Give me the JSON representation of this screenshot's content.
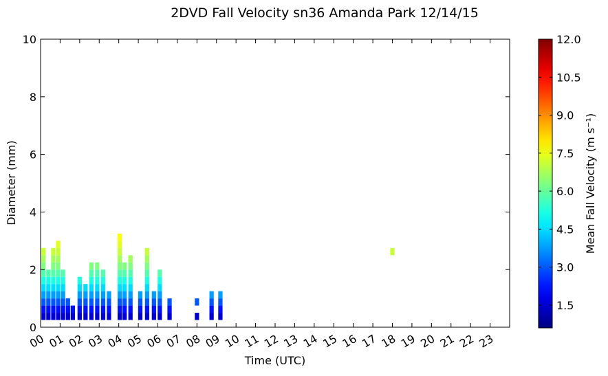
{
  "chart_data": {
    "type": "heatmap",
    "title": "2DVD Fall Velocity sn36 Amanda Park 12/14/15",
    "x_label": "Time (UTC)",
    "y_label": "Diameter (mm)",
    "colorbar_label": "Mean Fall Velocity (m s⁻¹)",
    "colormap": "jet",
    "xlim": [
      0,
      24
    ],
    "ylim": [
      0,
      10
    ],
    "clim": [
      0.6,
      12
    ],
    "xticks": [
      {
        "value": 0,
        "label": "00"
      },
      {
        "value": 1,
        "label": "01"
      },
      {
        "value": 2,
        "label": "02"
      },
      {
        "value": 3,
        "label": "03"
      },
      {
        "value": 4,
        "label": "04"
      },
      {
        "value": 5,
        "label": "05"
      },
      {
        "value": 6,
        "label": "06"
      },
      {
        "value": 7,
        "label": "07"
      },
      {
        "value": 8,
        "label": "08"
      },
      {
        "value": 9,
        "label": "09"
      },
      {
        "value": 10,
        "label": "10"
      },
      {
        "value": 11,
        "label": "11"
      },
      {
        "value": 12,
        "label": "12"
      },
      {
        "value": 13,
        "label": "13"
      },
      {
        "value": 14,
        "label": "14"
      },
      {
        "value": 15,
        "label": "15"
      },
      {
        "value": 16,
        "label": "16"
      },
      {
        "value": 17,
        "label": "17"
      },
      {
        "value": 18,
        "label": "18"
      },
      {
        "value": 19,
        "label": "19"
      },
      {
        "value": 20,
        "label": "20"
      },
      {
        "value": 21,
        "label": "21"
      },
      {
        "value": 22,
        "label": "22"
      },
      {
        "value": 23,
        "label": "23"
      }
    ],
    "yticks": [
      0,
      2,
      4,
      6,
      8,
      10
    ],
    "cticks": [
      1.5,
      {
        "value": 3,
        "label": "3.0"
      },
      4.5,
      {
        "value": 6,
        "label": "6.0"
      },
      7.5,
      {
        "value": 9,
        "label": "9.0"
      },
      10.5,
      {
        "value": 12,
        "label": "12.0"
      }
    ],
    "columns": [
      {
        "x": 0.15,
        "diameters": [
          0.375,
          0.625,
          0.875,
          1.125,
          1.375,
          1.625,
          1.875,
          2.125,
          2.375,
          2.625
        ],
        "values": [
          1.5,
          2.2,
          3.0,
          3.8,
          4.5,
          5.2,
          5.8,
          6.3,
          6.7,
          7.1
        ]
      },
      {
        "x": 0.4,
        "diameters": [
          0.375,
          0.625,
          0.875,
          1.125,
          1.375,
          1.625,
          1.875
        ],
        "values": [
          1.5,
          2.2,
          3.0,
          3.8,
          4.5,
          5.2,
          5.8
        ]
      },
      {
        "x": 0.65,
        "diameters": [
          0.375,
          0.625,
          0.875,
          1.125,
          1.375,
          1.625,
          1.875,
          2.125,
          2.375,
          2.625
        ],
        "values": [
          1.5,
          2.2,
          3.0,
          3.8,
          4.5,
          5.2,
          5.8,
          6.3,
          6.7,
          7.1
        ]
      },
      {
        "x": 0.9,
        "diameters": [
          0.375,
          0.625,
          0.875,
          1.125,
          1.375,
          1.625,
          1.875,
          2.125,
          2.375,
          2.625,
          2.875
        ],
        "values": [
          1.5,
          2.2,
          3.0,
          3.8,
          4.5,
          5.2,
          5.8,
          6.3,
          6.7,
          7.1,
          7.4
        ]
      },
      {
        "x": 1.15,
        "diameters": [
          0.375,
          0.625,
          0.875,
          1.125,
          1.375,
          1.625,
          1.875
        ],
        "values": [
          1.5,
          2.2,
          3.0,
          3.8,
          4.5,
          5.2,
          5.8
        ]
      },
      {
        "x": 1.4,
        "diameters": [
          0.375,
          0.625,
          0.875
        ],
        "values": [
          1.5,
          2.2,
          3.0
        ]
      },
      {
        "x": 1.65,
        "diameters": [
          0.375,
          0.625
        ],
        "values": [
          1.5,
          2.2
        ]
      },
      {
        "x": 2.0,
        "diameters": [
          0.375,
          0.625,
          0.875,
          1.125,
          1.375,
          1.625
        ],
        "values": [
          1.5,
          2.2,
          3.0,
          3.8,
          4.5,
          5.2
        ]
      },
      {
        "x": 2.3,
        "diameters": [
          0.375,
          0.625,
          0.875,
          1.125,
          1.375
        ],
        "values": [
          1.5,
          2.2,
          3.0,
          3.8,
          4.5
        ]
      },
      {
        "x": 2.6,
        "diameters": [
          0.375,
          0.625,
          0.875,
          1.125,
          1.375,
          1.625,
          1.875,
          2.125
        ],
        "values": [
          1.5,
          2.2,
          3.0,
          3.8,
          4.5,
          5.2,
          5.8,
          6.3
        ]
      },
      {
        "x": 2.9,
        "diameters": [
          0.375,
          0.625,
          0.875,
          1.125,
          1.375,
          1.625,
          1.875,
          2.125
        ],
        "values": [
          1.5,
          2.2,
          3.0,
          3.8,
          4.5,
          5.2,
          5.8,
          6.3
        ]
      },
      {
        "x": 3.2,
        "diameters": [
          0.375,
          0.625,
          0.875,
          1.125,
          1.375,
          1.625,
          1.875
        ],
        "values": [
          1.5,
          2.2,
          3.0,
          3.8,
          4.5,
          5.2,
          5.8
        ]
      },
      {
        "x": 3.5,
        "diameters": [
          0.375,
          0.625,
          0.875,
          1.125
        ],
        "values": [
          1.5,
          2.2,
          3.0,
          3.8
        ]
      },
      {
        "x": 4.05,
        "diameters": [
          0.375,
          0.625,
          0.875,
          1.125,
          1.375,
          1.625,
          1.875,
          2.125,
          2.375,
          2.625,
          2.875,
          3.125
        ],
        "values": [
          1.5,
          2.2,
          3.0,
          3.8,
          4.5,
          5.2,
          5.8,
          6.3,
          6.7,
          7.1,
          7.4,
          7.7
        ]
      },
      {
        "x": 4.3,
        "diameters": [
          0.375,
          0.625,
          0.875,
          1.125,
          1.375,
          1.625,
          1.875,
          2.125
        ],
        "values": [
          1.5,
          2.2,
          3.0,
          3.8,
          4.5,
          5.2,
          5.8,
          6.3
        ]
      },
      {
        "x": 4.6,
        "diameters": [
          0.375,
          0.625,
          0.875,
          1.125,
          1.375,
          1.625,
          1.875,
          2.125,
          2.375
        ],
        "values": [
          1.5,
          2.2,
          3.0,
          3.8,
          4.5,
          5.2,
          5.8,
          6.3,
          6.7
        ]
      },
      {
        "x": 5.1,
        "diameters": [
          0.375,
          0.625,
          0.875,
          1.125
        ],
        "values": [
          1.5,
          2.2,
          3.0,
          3.8
        ]
      },
      {
        "x": 5.45,
        "diameters": [
          0.375,
          0.625,
          0.875,
          1.125,
          1.375,
          1.625,
          1.875,
          2.125,
          2.375,
          2.625
        ],
        "values": [
          1.5,
          2.2,
          3.0,
          3.8,
          4.5,
          5.2,
          5.8,
          6.3,
          6.7,
          7.1
        ]
      },
      {
        "x": 5.8,
        "diameters": [
          0.375,
          0.625,
          0.875,
          1.125
        ],
        "values": [
          1.5,
          2.2,
          3.0,
          3.8
        ]
      },
      {
        "x": 6.1,
        "diameters": [
          0.375,
          0.625,
          0.875,
          1.125,
          1.375,
          1.625,
          1.875
        ],
        "values": [
          1.5,
          2.2,
          3.0,
          3.8,
          4.5,
          5.2,
          5.8
        ]
      },
      {
        "x": 6.6,
        "diameters": [
          0.375,
          0.625,
          0.875
        ],
        "values": [
          1.5,
          2.2,
          3.0
        ]
      },
      {
        "x": 8.0,
        "diameters": [
          0.375,
          0.875
        ],
        "values": [
          1.5,
          3.0
        ]
      },
      {
        "x": 8.75,
        "diameters": [
          0.375,
          0.625,
          0.875,
          1.125
        ],
        "values": [
          1.5,
          2.2,
          3.0,
          3.8
        ]
      },
      {
        "x": 9.2,
        "diameters": [
          0.375,
          0.625,
          0.875,
          1.125
        ],
        "values": [
          1.5,
          2.2,
          3.0,
          3.8
        ]
      },
      {
        "x": 18.0,
        "diameters": [
          2.625
        ],
        "values": [
          7.1
        ]
      }
    ]
  }
}
